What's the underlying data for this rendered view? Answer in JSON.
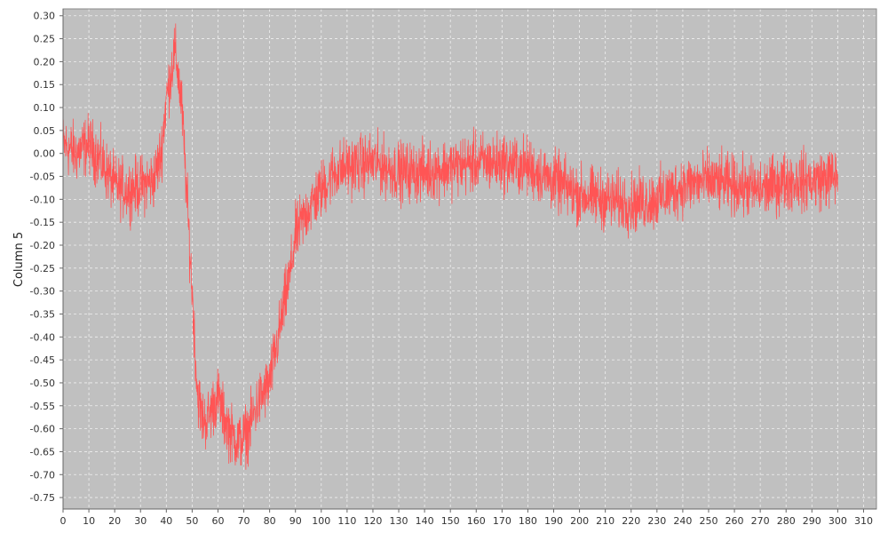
{
  "chart_data": {
    "type": "line",
    "title": "",
    "xlabel": "",
    "ylabel": "Column 5",
    "xlim": [
      0,
      315
    ],
    "ylim": [
      -0.775,
      0.315
    ],
    "x_ticks": [
      0,
      10,
      20,
      30,
      40,
      50,
      60,
      70,
      80,
      90,
      100,
      110,
      120,
      130,
      140,
      150,
      160,
      170,
      180,
      190,
      200,
      210,
      220,
      230,
      240,
      250,
      260,
      270,
      280,
      290,
      300,
      310
    ],
    "y_ticks": [
      0.3,
      0.25,
      0.2,
      0.15,
      0.1,
      0.05,
      0.0,
      -0.05,
      -0.1,
      -0.15,
      -0.2,
      -0.25,
      -0.3,
      -0.35,
      -0.4,
      -0.45,
      -0.5,
      -0.55,
      -0.6,
      -0.65,
      -0.7,
      -0.75
    ],
    "grid": true,
    "noise_amplitude": 0.055,
    "series": [
      {
        "color": "#ff5555",
        "x": [
          0,
          5,
          10,
          15,
          20,
          25,
          30,
          35,
          38,
          40,
          42,
          43,
          44,
          46,
          48,
          50,
          52,
          54,
          56,
          58,
          60,
          62,
          65,
          68,
          70,
          72,
          75,
          80,
          85,
          88,
          90,
          95,
          100,
          105,
          110,
          120,
          130,
          140,
          150,
          160,
          170,
          180,
          190,
          200,
          210,
          220,
          230,
          240,
          250,
          260,
          270,
          280,
          290,
          300
        ],
        "y": [
          0.02,
          0.0,
          0.02,
          -0.02,
          -0.07,
          -0.08,
          -0.07,
          -0.06,
          0.0,
          0.12,
          0.18,
          0.22,
          0.2,
          0.1,
          -0.1,
          -0.3,
          -0.52,
          -0.58,
          -0.58,
          -0.55,
          -0.53,
          -0.57,
          -0.61,
          -0.63,
          -0.62,
          -0.6,
          -0.55,
          -0.5,
          -0.35,
          -0.26,
          -0.18,
          -0.12,
          -0.08,
          -0.04,
          -0.03,
          -0.02,
          -0.04,
          -0.04,
          -0.03,
          -0.02,
          -0.02,
          -0.03,
          -0.06,
          -0.09,
          -0.1,
          -0.11,
          -0.1,
          -0.07,
          -0.06,
          -0.07,
          -0.08,
          -0.06,
          -0.06,
          -0.05
        ]
      }
    ]
  },
  "colors": {
    "plot_background": "#c0c0c0",
    "grid": "#f0f0f0",
    "series": "#ff5555"
  }
}
